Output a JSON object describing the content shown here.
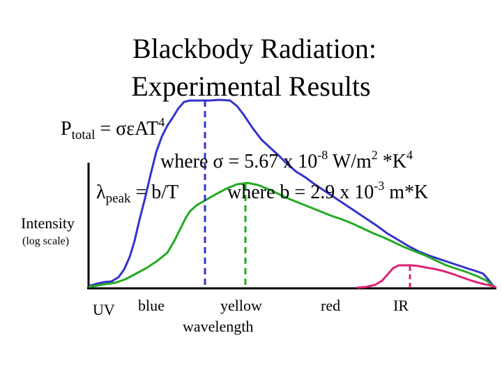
{
  "title": {
    "line1": "Blackbody Radiation:",
    "line2": "Experimental Results"
  },
  "equations": {
    "stefan": {
      "lhs": "P",
      "sub": "total",
      "rhs": " = σεAT",
      "sup": "4"
    },
    "sigma": {
      "text": "where σ = 5.67 x 10",
      "exp": "-8",
      "unit1": "  W/m",
      "unit_exp1": "2",
      "unit2": " *K",
      "unit_exp2": "4"
    },
    "wien": {
      "lhs": "λ",
      "sub": "peak",
      "rhs": " = b/T"
    },
    "b_const": {
      "text": "where b = 2.9 x 10",
      "exp": "-3",
      "unit": " m*K"
    }
  },
  "axes": {
    "y_label": "Intensity",
    "y_sublabel": "(log scale)",
    "x_label": "wavelength"
  },
  "bands": [
    "UV",
    "blue",
    "yellow",
    "red",
    "IR"
  ],
  "colors": {
    "axis": "#000000",
    "hot_curve": "#3333cc",
    "medium_curve": "#22aa22",
    "cool_curve": "#dd2277"
  }
}
